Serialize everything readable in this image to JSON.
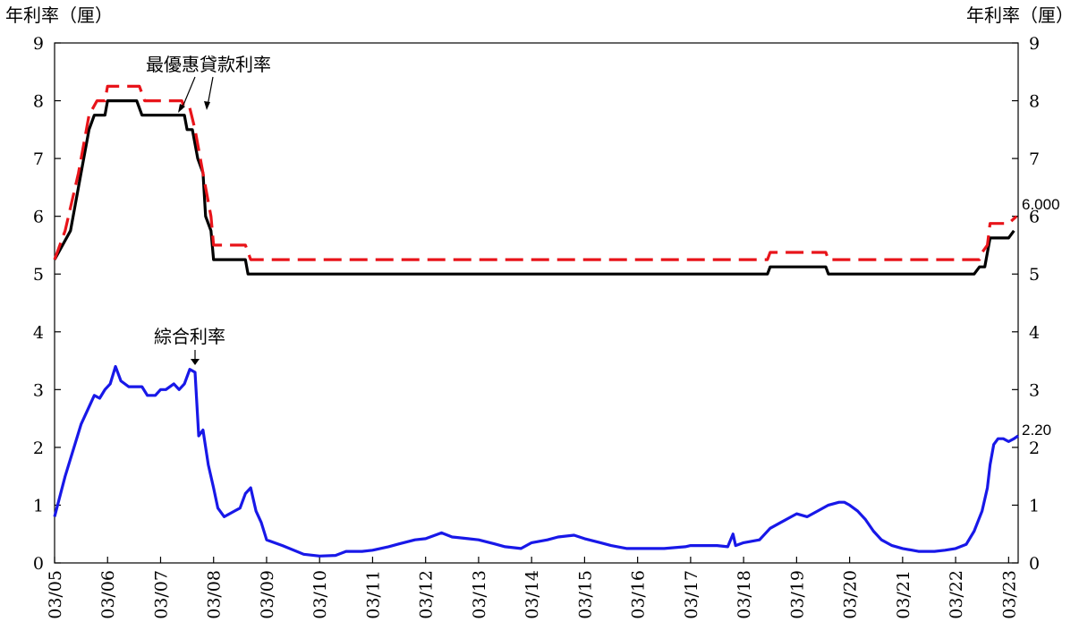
{
  "chart_data": {
    "type": "line",
    "y_left_label": "年利率（厘）",
    "y_right_label": "年利率（厘）",
    "ylim": [
      0,
      9
    ],
    "y_ticks": [
      0,
      1,
      2,
      3,
      4,
      5,
      6,
      7,
      8,
      9
    ],
    "x_ticks": [
      "03/05",
      "03/06",
      "03/07",
      "03/08",
      "03/09",
      "03/10",
      "03/11",
      "03/12",
      "03/13",
      "03/14",
      "03/15",
      "03/16",
      "03/17",
      "03/18",
      "03/19",
      "03/20",
      "03/21",
      "03/22",
      "03/23"
    ],
    "x_range": [
      2005.0,
      2023.18
    ],
    "grid": false,
    "series": [
      {
        "name": "最優惠貸款利率",
        "color": "#000000",
        "style": "solid",
        "points": [
          [
            2005.0,
            5.25
          ],
          [
            2005.3,
            5.75
          ],
          [
            2005.5,
            6.75
          ],
          [
            2005.65,
            7.5
          ],
          [
            2005.75,
            7.75
          ],
          [
            2005.95,
            7.75
          ],
          [
            2006.0,
            8.0
          ],
          [
            2006.55,
            8.0
          ],
          [
            2006.65,
            7.75
          ],
          [
            2007.45,
            7.75
          ],
          [
            2007.5,
            7.5
          ],
          [
            2007.6,
            7.5
          ],
          [
            2007.7,
            7.0
          ],
          [
            2007.8,
            6.75
          ],
          [
            2007.85,
            6.0
          ],
          [
            2007.95,
            5.75
          ],
          [
            2008.0,
            5.25
          ],
          [
            2008.6,
            5.25
          ],
          [
            2008.65,
            5.0
          ],
          [
            2018.45,
            5.0
          ],
          [
            2018.5,
            5.125
          ],
          [
            2019.55,
            5.125
          ],
          [
            2019.6,
            5.0
          ],
          [
            2022.35,
            5.0
          ],
          [
            2022.45,
            5.125
          ],
          [
            2022.55,
            5.125
          ],
          [
            2022.65,
            5.625
          ],
          [
            2023.0,
            5.625
          ],
          [
            2023.1,
            5.75
          ]
        ]
      },
      {
        "name": "最優惠貸款利率 (upper)",
        "color": "#e8141a",
        "style": "dashed",
        "points": [
          [
            2005.0,
            5.25
          ],
          [
            2005.2,
            5.75
          ],
          [
            2005.45,
            6.75
          ],
          [
            2005.65,
            7.75
          ],
          [
            2005.8,
            8.0
          ],
          [
            2005.95,
            8.0
          ],
          [
            2006.0,
            8.25
          ],
          [
            2006.6,
            8.25
          ],
          [
            2006.7,
            8.0
          ],
          [
            2007.4,
            8.0
          ],
          [
            2007.45,
            7.875
          ],
          [
            2007.55,
            7.875
          ],
          [
            2007.65,
            7.5
          ],
          [
            2007.75,
            7.0
          ],
          [
            2007.85,
            6.5
          ],
          [
            2007.95,
            6.0
          ],
          [
            2008.0,
            5.5
          ],
          [
            2008.6,
            5.5
          ],
          [
            2008.7,
            5.25
          ],
          [
            2018.45,
            5.25
          ],
          [
            2018.5,
            5.375
          ],
          [
            2019.55,
            5.375
          ],
          [
            2019.6,
            5.25
          ],
          [
            2022.45,
            5.25
          ],
          [
            2022.5,
            5.375
          ],
          [
            2022.6,
            5.5
          ],
          [
            2022.65,
            5.875
          ],
          [
            2023.0,
            5.875
          ],
          [
            2023.15,
            6.0
          ]
        ]
      },
      {
        "name": "綜合利率",
        "color": "#1818e8",
        "style": "solid",
        "points": [
          [
            2005.0,
            0.8
          ],
          [
            2005.2,
            1.5
          ],
          [
            2005.5,
            2.4
          ],
          [
            2005.75,
            2.9
          ],
          [
            2005.85,
            2.85
          ],
          [
            2005.95,
            3.0
          ],
          [
            2006.05,
            3.1
          ],
          [
            2006.15,
            3.4
          ],
          [
            2006.25,
            3.15
          ],
          [
            2006.4,
            3.05
          ],
          [
            2006.5,
            3.05
          ],
          [
            2006.65,
            3.05
          ],
          [
            2006.75,
            2.9
          ],
          [
            2006.9,
            2.9
          ],
          [
            2007.0,
            3.0
          ],
          [
            2007.1,
            3.0
          ],
          [
            2007.25,
            3.1
          ],
          [
            2007.35,
            3.0
          ],
          [
            2007.45,
            3.1
          ],
          [
            2007.55,
            3.35
          ],
          [
            2007.65,
            3.3
          ],
          [
            2007.72,
            2.2
          ],
          [
            2007.8,
            2.3
          ],
          [
            2007.9,
            1.7
          ],
          [
            2008.0,
            1.3
          ],
          [
            2008.08,
            0.95
          ],
          [
            2008.2,
            0.8
          ],
          [
            2008.3,
            0.85
          ],
          [
            2008.4,
            0.9
          ],
          [
            2008.5,
            0.95
          ],
          [
            2008.6,
            1.2
          ],
          [
            2008.7,
            1.3
          ],
          [
            2008.8,
            0.9
          ],
          [
            2008.9,
            0.7
          ],
          [
            2009.0,
            0.4
          ],
          [
            2009.3,
            0.3
          ],
          [
            2009.7,
            0.15
          ],
          [
            2010.0,
            0.12
          ],
          [
            2010.3,
            0.13
          ],
          [
            2010.5,
            0.2
          ],
          [
            2010.8,
            0.2
          ],
          [
            2011.0,
            0.22
          ],
          [
            2011.3,
            0.28
          ],
          [
            2011.5,
            0.33
          ],
          [
            2011.8,
            0.4
          ],
          [
            2012.0,
            0.42
          ],
          [
            2012.3,
            0.52
          ],
          [
            2012.5,
            0.45
          ],
          [
            2012.8,
            0.42
          ],
          [
            2013.0,
            0.4
          ],
          [
            2013.3,
            0.33
          ],
          [
            2013.5,
            0.28
          ],
          [
            2013.8,
            0.25
          ],
          [
            2014.0,
            0.35
          ],
          [
            2014.3,
            0.4
          ],
          [
            2014.5,
            0.45
          ],
          [
            2014.8,
            0.48
          ],
          [
            2015.0,
            0.42
          ],
          [
            2015.3,
            0.35
          ],
          [
            2015.5,
            0.3
          ],
          [
            2015.8,
            0.25
          ],
          [
            2016.0,
            0.25
          ],
          [
            2016.5,
            0.25
          ],
          [
            2016.9,
            0.28
          ],
          [
            2017.0,
            0.3
          ],
          [
            2017.5,
            0.3
          ],
          [
            2017.7,
            0.28
          ],
          [
            2017.8,
            0.5
          ],
          [
            2017.85,
            0.3
          ],
          [
            2018.0,
            0.35
          ],
          [
            2018.3,
            0.4
          ],
          [
            2018.5,
            0.6
          ],
          [
            2018.7,
            0.7
          ],
          [
            2018.9,
            0.8
          ],
          [
            2019.0,
            0.85
          ],
          [
            2019.2,
            0.8
          ],
          [
            2019.4,
            0.9
          ],
          [
            2019.6,
            1.0
          ],
          [
            2019.8,
            1.05
          ],
          [
            2019.9,
            1.05
          ],
          [
            2020.0,
            1.0
          ],
          [
            2020.15,
            0.9
          ],
          [
            2020.3,
            0.75
          ],
          [
            2020.45,
            0.55
          ],
          [
            2020.6,
            0.4
          ],
          [
            2020.8,
            0.3
          ],
          [
            2021.0,
            0.25
          ],
          [
            2021.3,
            0.2
          ],
          [
            2021.6,
            0.2
          ],
          [
            2021.8,
            0.22
          ],
          [
            2022.0,
            0.25
          ],
          [
            2022.2,
            0.32
          ],
          [
            2022.35,
            0.55
          ],
          [
            2022.5,
            0.9
          ],
          [
            2022.6,
            1.3
          ],
          [
            2022.65,
            1.7
          ],
          [
            2022.72,
            2.05
          ],
          [
            2022.8,
            2.15
          ],
          [
            2022.9,
            2.15
          ],
          [
            2023.0,
            2.1
          ],
          [
            2023.1,
            2.15
          ],
          [
            2023.18,
            2.2
          ]
        ]
      }
    ],
    "annotations": [
      {
        "text": "最優惠貸款利率"
      },
      {
        "text": "綜合利率"
      },
      {
        "text": "6.000"
      },
      {
        "text": "2.20"
      }
    ]
  }
}
